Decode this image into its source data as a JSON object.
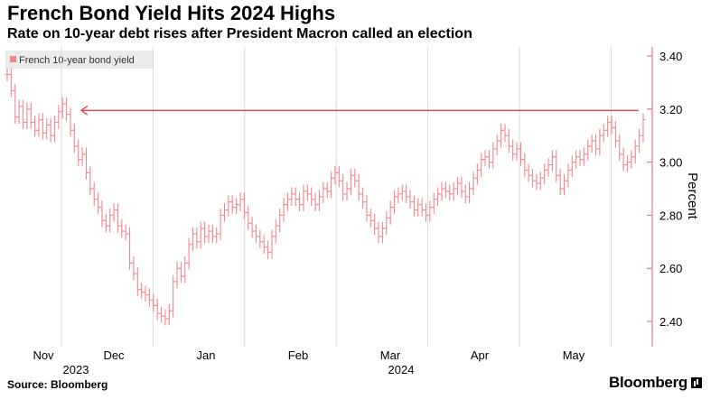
{
  "header": {
    "title": "French Bond Yield Hits 2024 Highs",
    "subtitle": "Rate on 10-year debt rises after President Macron called an election"
  },
  "footer": {
    "source": "Source: Bloomberg",
    "brand": "Bloomberg"
  },
  "colors": {
    "series": "#f3868e",
    "axis": "#e8606b",
    "arrow": "#e8434f",
    "grid": "#d9d9d9"
  },
  "chart_data": {
    "type": "ohlc",
    "title": "French Bond Yield Hits 2024 Highs",
    "subtitle": "Rate on 10-year debt rises after President Macron called an election",
    "legend": "French 10-year bond yield",
    "legend_position": "top-left",
    "ylabel": "Percent",
    "ylim": [
      2.35,
      3.45
    ],
    "yticks": [
      "3.40",
      "3.20",
      "3.00",
      "2.80",
      "2.60",
      "2.40"
    ],
    "ytick_values": [
      3.4,
      3.2,
      3.0,
      2.8,
      2.6,
      2.4
    ],
    "xticks": [
      "Nov",
      "Dec",
      "Jan",
      "Feb",
      "Mar",
      "Apr",
      "May"
    ],
    "xtick_month_index": [
      0,
      1,
      2,
      3,
      4,
      5,
      6
    ],
    "years": [
      {
        "label": "2023",
        "month_index": 0.3
      },
      {
        "label": "2024",
        "month_index": 4.2
      }
    ],
    "month_span": 6.85,
    "reference_line": {
      "value": 3.195,
      "from_month": 0.2,
      "to_month": 6.85,
      "direction": "left"
    },
    "values": [
      3.33,
      3.27,
      3.17,
      3.21,
      3.15,
      3.2,
      3.15,
      3.12,
      3.16,
      3.11,
      3.14,
      3.1,
      3.15,
      3.19,
      3.22,
      3.18,
      3.12,
      3.06,
      3.01,
      3.03,
      2.96,
      2.9,
      2.86,
      2.83,
      2.78,
      2.76,
      2.8,
      2.82,
      2.76,
      2.74,
      2.73,
      2.62,
      2.58,
      2.52,
      2.51,
      2.5,
      2.48,
      2.46,
      2.43,
      2.42,
      2.41,
      2.44,
      2.55,
      2.6,
      2.57,
      2.62,
      2.69,
      2.73,
      2.7,
      2.75,
      2.72,
      2.74,
      2.72,
      2.73,
      2.8,
      2.82,
      2.85,
      2.83,
      2.84,
      2.86,
      2.81,
      2.77,
      2.74,
      2.72,
      2.7,
      2.68,
      2.66,
      2.72,
      2.76,
      2.8,
      2.84,
      2.86,
      2.88,
      2.86,
      2.84,
      2.89,
      2.88,
      2.86,
      2.84,
      2.87,
      2.9,
      2.89,
      2.94,
      2.96,
      2.93,
      2.88,
      2.9,
      2.95,
      2.93,
      2.88,
      2.85,
      2.8,
      2.78,
      2.75,
      2.72,
      2.75,
      2.79,
      2.83,
      2.87,
      2.88,
      2.89,
      2.87,
      2.85,
      2.82,
      2.84,
      2.82,
      2.8,
      2.83,
      2.86,
      2.88,
      2.9,
      2.89,
      2.88,
      2.9,
      2.92,
      2.89,
      2.87,
      2.9,
      2.94,
      2.97,
      3.01,
      3.02,
      3.0,
      3.05,
      3.08,
      3.12,
      3.1,
      3.06,
      3.03,
      3.05,
      3.01,
      2.97,
      2.95,
      2.93,
      2.92,
      2.94,
      2.97,
      2.99,
      3.02,
      2.95,
      2.9,
      2.93,
      2.97,
      3.0,
      3.02,
      3.01,
      3.03,
      3.06,
      3.08,
      3.05,
      3.1,
      3.12,
      3.15,
      3.13,
      3.08,
      3.03,
      2.99,
      3.0,
      3.02,
      3.06,
      3.1,
      3.16
    ]
  }
}
